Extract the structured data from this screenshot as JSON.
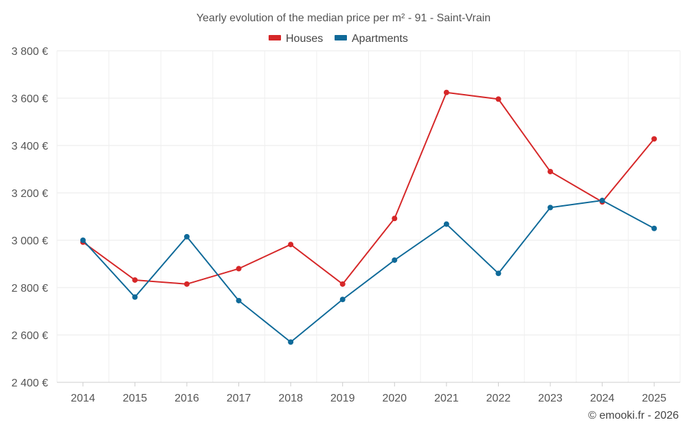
{
  "chart_data": {
    "type": "line",
    "title": "Yearly evolution of the median price per m² - 91 - Saint-Vrain",
    "categories": [
      "2014",
      "2015",
      "2016",
      "2017",
      "2018",
      "2019",
      "2020",
      "2021",
      "2022",
      "2023",
      "2024",
      "2025"
    ],
    "series": [
      {
        "name": "Houses",
        "color": "#d62728",
        "values": [
          2992,
          2832,
          2815,
          2880,
          2982,
          2815,
          3092,
          3624,
          3596,
          3290,
          3162,
          3428
        ]
      },
      {
        "name": "Apartments",
        "color": "#0f6a99",
        "values": [
          3000,
          2760,
          3015,
          2745,
          2570,
          2750,
          2916,
          3068,
          2860,
          3138,
          3168,
          3050
        ]
      }
    ],
    "ylim": [
      2400,
      3800
    ],
    "y_ticks": [
      2400,
      2600,
      2800,
      3000,
      3200,
      3400,
      3600,
      3800
    ],
    "y_tick_labels": [
      "2 400 €",
      "2 600 €",
      "2 800 €",
      "3 000 €",
      "3 200 €",
      "3 400 €",
      "3 600 €",
      "3 800 €"
    ],
    "xlabel": "",
    "ylabel": "",
    "grid": true,
    "legend_position": "top-center"
  },
  "credit": "© emooki.fr - 2026"
}
